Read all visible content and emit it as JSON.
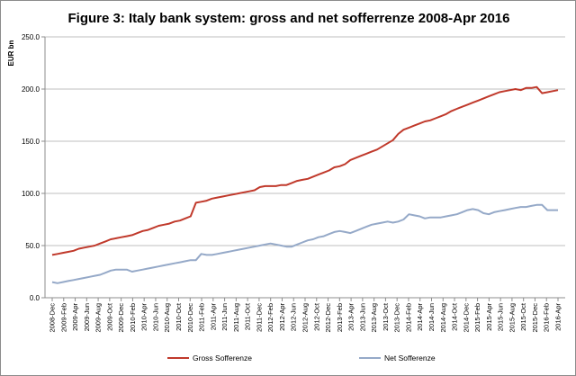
{
  "chart_data": {
    "type": "line",
    "title": "Figure 3: Italy bank system: gross and net sofferrenze 2008-Apr 2016",
    "ylabel": "EUR bn",
    "xlabel": "",
    "ylim": [
      0,
      250
    ],
    "yticks": [
      "0.0",
      "50.0",
      "100.0",
      "150.0",
      "200.0",
      "250.0"
    ],
    "ytick_values": [
      0,
      50,
      100,
      150,
      200,
      250
    ],
    "grid": "horizontal",
    "legend_position": "bottom",
    "x_tick_labels": [
      "2008-Dec",
      "2009-Feb",
      "2009-Apr",
      "2009-Jun",
      "2009-Aug",
      "2009-Oct",
      "2009-Dec",
      "2010-Feb",
      "2010-Apr",
      "2010-Jun",
      "2010-Aug",
      "2010-Oct",
      "2010-Dec",
      "2011-Feb",
      "2011-Apr",
      "2011-Jun",
      "2011-Aug",
      "2011-Oct",
      "2011-Dec",
      "2012-Feb",
      "2012-Apr",
      "2012-Jun",
      "2012-Aug",
      "2012-Oct",
      "2012-Dec",
      "2013-Feb",
      "2013-Apr",
      "2013-Jun",
      "2013-Aug",
      "2013-Oct",
      "2013-Dec",
      "2014-Feb",
      "2014-Apr",
      "2014-Jun",
      "2014-Aug",
      "2014-Oct",
      "2014-Dec",
      "2015-Feb",
      "2015-Apr",
      "2015-Jun",
      "2015-Aug",
      "2015-Oct",
      "2015-Dec",
      "2016-Feb",
      "2016-Apr"
    ],
    "series": [
      {
        "name": "Gross Sofferenze",
        "color": "#c0392b",
        "values": [
          41,
          42,
          43,
          44,
          45,
          47,
          48,
          49,
          50,
          52,
          54,
          56,
          57,
          58,
          59,
          60,
          62,
          64,
          65,
          67,
          69,
          70,
          71,
          73,
          74,
          76,
          78,
          91,
          92,
          93,
          95,
          96,
          97,
          98,
          99,
          100,
          101,
          102,
          103,
          106,
          107,
          107,
          107,
          108,
          108,
          110,
          112,
          113,
          114,
          116,
          118,
          120,
          122,
          125,
          126,
          128,
          132,
          134,
          136,
          138,
          140,
          142,
          145,
          148,
          151,
          157,
          161,
          163,
          165,
          167,
          169,
          170,
          172,
          174,
          176,
          179,
          181,
          183,
          185,
          187,
          189,
          191,
          193,
          195,
          197,
          198,
          199,
          200,
          199,
          201,
          201,
          202,
          196,
          197,
          198,
          199
        ]
      },
      {
        "name": "Net Sofferenze",
        "color": "#95a9c8",
        "values": [
          15,
          14,
          15,
          16,
          17,
          18,
          19,
          20,
          21,
          22,
          24,
          26,
          27,
          27,
          27,
          25,
          26,
          27,
          28,
          29,
          30,
          31,
          32,
          33,
          34,
          35,
          36,
          36,
          42,
          41,
          41,
          42,
          43,
          44,
          45,
          46,
          47,
          48,
          49,
          50,
          51,
          52,
          51,
          50,
          49,
          49,
          51,
          53,
          55,
          56,
          58,
          59,
          61,
          63,
          64,
          63,
          62,
          64,
          66,
          68,
          70,
          71,
          72,
          73,
          72,
          73,
          75,
          80,
          79,
          78,
          76,
          77,
          77,
          77,
          78,
          79,
          80,
          82,
          84,
          85,
          84,
          81,
          80,
          82,
          83,
          84,
          85,
          86,
          87,
          87,
          88,
          89,
          89,
          84,
          84,
          84
        ]
      }
    ]
  }
}
